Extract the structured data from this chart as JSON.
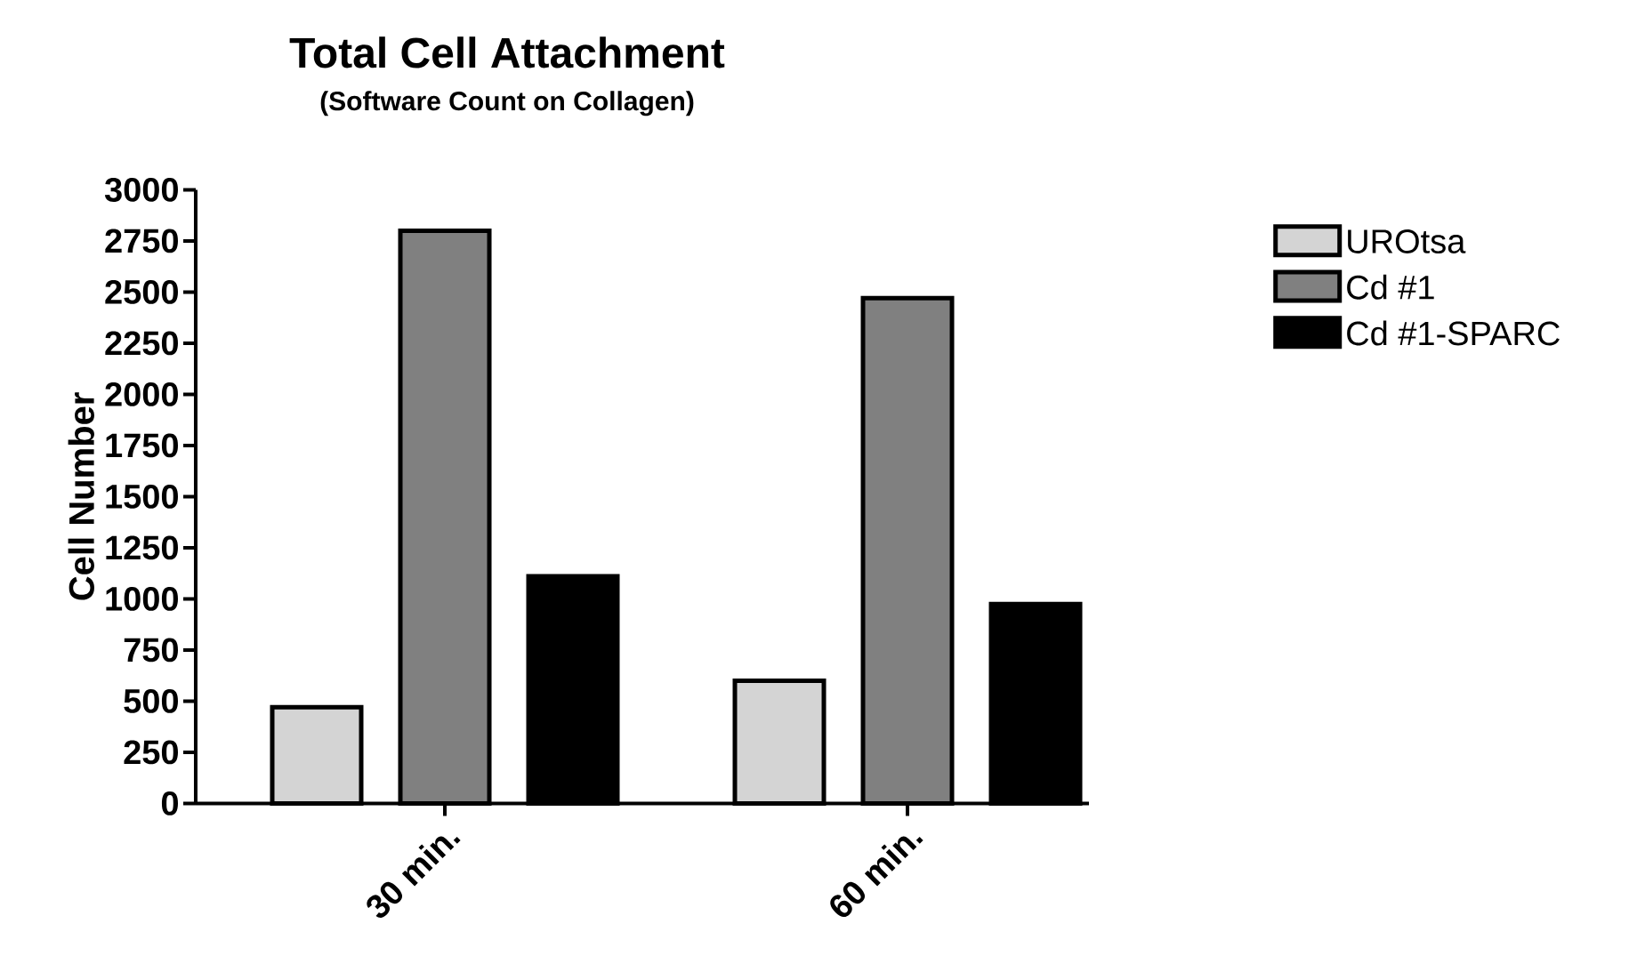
{
  "chart_data": {
    "type": "bar",
    "title": "Total Cell Attachment",
    "subtitle": "(Software Count on Collagen)",
    "ylabel": "Cell Number",
    "categories": [
      "30 min.",
      "60 min."
    ],
    "series": [
      {
        "name": "UROtsa",
        "color": "#d4d4d4",
        "values": [
          470,
          600
        ]
      },
      {
        "name": "Cd #1",
        "color": "#808080",
        "values": [
          2800,
          2470
        ]
      },
      {
        "name": "Cd #1-SPARC",
        "color": "#000000",
        "values": [
          1110,
          975
        ]
      }
    ],
    "ylim": [
      0,
      3000
    ],
    "yticks": [
      0,
      250,
      500,
      750,
      1000,
      1250,
      1500,
      1750,
      2000,
      2250,
      2500,
      2750,
      3000
    ],
    "legend": "right",
    "grid": false
  }
}
